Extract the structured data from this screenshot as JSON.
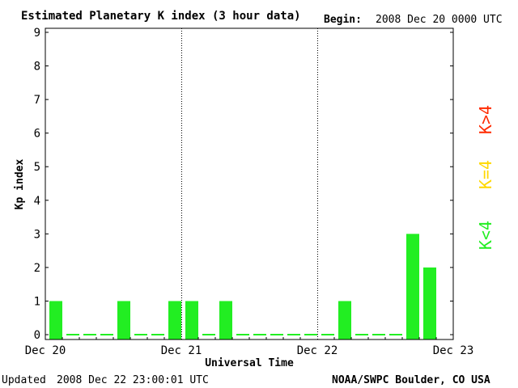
{
  "header": {
    "title": "Estimated Planetary K index (3 hour data)",
    "begin_label": "Begin:",
    "begin_value": "2008 Dec 20 0000 UTC"
  },
  "footer": {
    "updated_label": "Updated",
    "updated_value": "2008 Dec 22 23:00:01 UTC",
    "source": "NOAA/SWPC Boulder, CO USA"
  },
  "legend": [
    {
      "label": "K>4",
      "color": "#ff2a00"
    },
    {
      "label": "K=4",
      "color": "#ffd800"
    },
    {
      "label": "K<4",
      "color": "#22ee22"
    }
  ],
  "chart_data": {
    "type": "bar",
    "title": "Estimated Planetary K index (3 hour data)",
    "xlabel": "Universal Time",
    "ylabel": "Kp index",
    "ylim": [
      0,
      9
    ],
    "yticks": [
      0,
      1,
      2,
      3,
      4,
      5,
      6,
      7,
      8,
      9
    ],
    "x_tick_labels": [
      "Dec 20",
      "Dec 21",
      "Dec 22",
      "Dec 23"
    ],
    "day_separators": [
      "Dec 21",
      "Dec 22"
    ],
    "bar_color": "#22ee22",
    "values": [
      1,
      0,
      0,
      0,
      1,
      0,
      0,
      1,
      1,
      0,
      1,
      0,
      0,
      0,
      0,
      0,
      0,
      1,
      0,
      0,
      0,
      3,
      2
    ]
  }
}
